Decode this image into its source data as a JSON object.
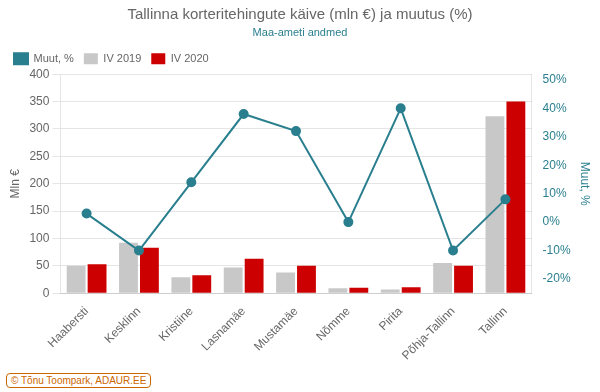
{
  "chart_data": {
    "type": "bar",
    "title": "Tallinna korteritehingute käive (mln €) ja muutus (%)",
    "subtitle": "Maa-ameti andmed",
    "footer": "© Tõnu Toompark, ADAUR.EE",
    "ylabel": "Mln €",
    "y2label": "Muut, %",
    "categories": [
      "Haabersti",
      "Kesklinn",
      "Kristiine",
      "Lasnamäe",
      "Mustamäe",
      "Nõmme",
      "Pirita",
      "Põhja-Tallinn",
      "Tallinn"
    ],
    "series": [
      {
        "name": "IV 2019",
        "color": "#c8c8c8",
        "values": [
          50,
          92,
          29,
          47,
          38,
          9,
          7,
          55,
          323
        ]
      },
      {
        "name": "IV 2020",
        "color": "#cc0000",
        "values": [
          53,
          83,
          33,
          63,
          50,
          10,
          11,
          50,
          350
        ]
      },
      {
        "name": "Muut, %",
        "type": "line",
        "axis": "y2",
        "color": "#2a7f8f",
        "marker": "circle",
        "values": [
          3,
          -10,
          14,
          38,
          32,
          0,
          40,
          -10,
          8
        ]
      }
    ],
    "ylim": [
      0,
      400
    ],
    "yticks": [
      0,
      50,
      100,
      150,
      200,
      250,
      300,
      350,
      400
    ],
    "y2lim": [
      -25,
      52
    ],
    "y2ticks": [
      {
        "value": -20,
        "label": "-20%"
      },
      {
        "value": -10,
        "label": "-10%"
      },
      {
        "value": 0,
        "label": "0%"
      },
      {
        "value": 10,
        "label": "10%"
      },
      {
        "value": 20,
        "label": "20%"
      },
      {
        "value": 30,
        "label": "30%"
      },
      {
        "value": 40,
        "label": "40%"
      },
      {
        "value": 50,
        "label": "50%"
      }
    ],
    "grid": true,
    "legend": "upper left"
  }
}
